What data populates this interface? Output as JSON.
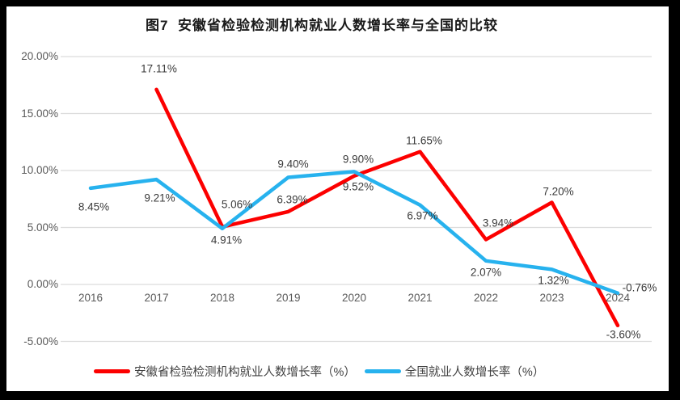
{
  "title": "图7  安徽省检验检测机构就业人数增长率与全国的比较",
  "chart_data": {
    "type": "line",
    "x": [
      "2016",
      "2017",
      "2018",
      "2019",
      "2020",
      "2021",
      "2022",
      "2023",
      "2024"
    ],
    "series": [
      {
        "name": "安徽省检验检测机构就业人数增长率（%）",
        "color": "#FC0000",
        "values": [
          null,
          17.11,
          5.06,
          6.39,
          9.52,
          11.65,
          3.94,
          7.2,
          -3.6
        ],
        "labels": [
          "",
          "17.11%",
          "5.06%",
          "6.39%",
          "9.52%",
          "11.65%",
          "3.94%",
          "7.20%",
          "-3.60%"
        ]
      },
      {
        "name": "全国就业人数增长率（%）",
        "color": "#27B2EE",
        "values": [
          8.45,
          9.21,
          4.91,
          9.4,
          9.9,
          6.97,
          2.07,
          1.32,
          -0.76
        ],
        "labels": [
          "8.45%",
          "9.21%",
          "4.91%",
          "9.40%",
          "9.90%",
          "6.97%",
          "2.07%",
          "1.32%",
          "-0.76%"
        ]
      }
    ],
    "y_axis": {
      "ticks": [
        "20.00%",
        "15.00%",
        "10.00%",
        "5.00%",
        "0.00%",
        "-5.00%"
      ],
      "tick_values": [
        20,
        15,
        10,
        5,
        0,
        -5
      ],
      "min": -5,
      "max": 20
    },
    "grid": true,
    "legend_position": "bottom",
    "gridline_color": "#DCDCDC",
    "background_color": "#FFFFFF",
    "border_color": "#000000"
  }
}
